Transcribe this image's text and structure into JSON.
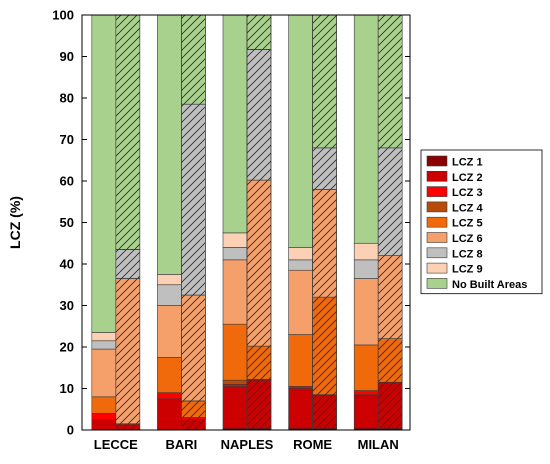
{
  "chart_data": {
    "type": "bar",
    "stacked": true,
    "ylabel": "LCZ (%)",
    "ylim": [
      0,
      100
    ],
    "yticks": [
      0,
      10,
      20,
      30,
      40,
      50,
      60,
      70,
      80,
      90,
      100
    ],
    "grid": false,
    "legend_position": "right",
    "categories": [
      "LECCE",
      "BARI",
      "NAPLES",
      "ROME",
      "MILAN"
    ],
    "bar_variants": [
      "solid",
      "hatched"
    ],
    "series": [
      {
        "name": "LCZ 1",
        "color": "#8b0000",
        "solid": [
          0,
          0,
          0.5,
          0.5,
          0.5
        ],
        "hatched": [
          0,
          0,
          0.5,
          0.5,
          0.5
        ]
      },
      {
        "name": "LCZ 2",
        "color": "#cc0000",
        "solid": [
          2.5,
          7.5,
          10,
          9.5,
          8
        ],
        "hatched": [
          1.2,
          2.5,
          11.5,
          8,
          11
        ]
      },
      {
        "name": "LCZ 3",
        "color": "#ff0000",
        "solid": [
          1.5,
          1.5,
          0.5,
          0.5,
          1
        ],
        "hatched": [
          0.3,
          0.5,
          0.2,
          0,
          0
        ]
      },
      {
        "name": "LCZ 4",
        "color": "#b84b0a",
        "solid": [
          0,
          0,
          1,
          0,
          0
        ],
        "hatched": [
          0,
          0,
          0,
          0,
          0
        ]
      },
      {
        "name": "LCZ 5",
        "color": "#f06a0c",
        "solid": [
          4,
          8.5,
          13.5,
          12.5,
          11
        ],
        "hatched": [
          0,
          4,
          8,
          23.5,
          10.5
        ]
      },
      {
        "name": "LCZ 6",
        "color": "#f5a06a",
        "solid": [
          11.5,
          12.5,
          15.5,
          15.5,
          16
        ],
        "hatched": [
          35,
          25.5,
          40,
          26,
          20
        ]
      },
      {
        "name": "LCZ 8",
        "color": "#bfbfbf",
        "solid": [
          2,
          5,
          3,
          2.5,
          4.5
        ],
        "hatched": [
          7,
          46,
          31.5,
          10,
          26
        ]
      },
      {
        "name": "LCZ 9",
        "color": "#fcd0b4",
        "solid": [
          2,
          2.5,
          3.5,
          3,
          4
        ],
        "hatched": [
          0,
          0,
          0,
          0,
          0
        ]
      },
      {
        "name": "No Built Areas",
        "color": "#a9d18e",
        "solid": [
          76.5,
          62.5,
          52.5,
          56,
          55
        ],
        "hatched": [
          56.5,
          21.5,
          8.3,
          32,
          32
        ]
      }
    ]
  }
}
